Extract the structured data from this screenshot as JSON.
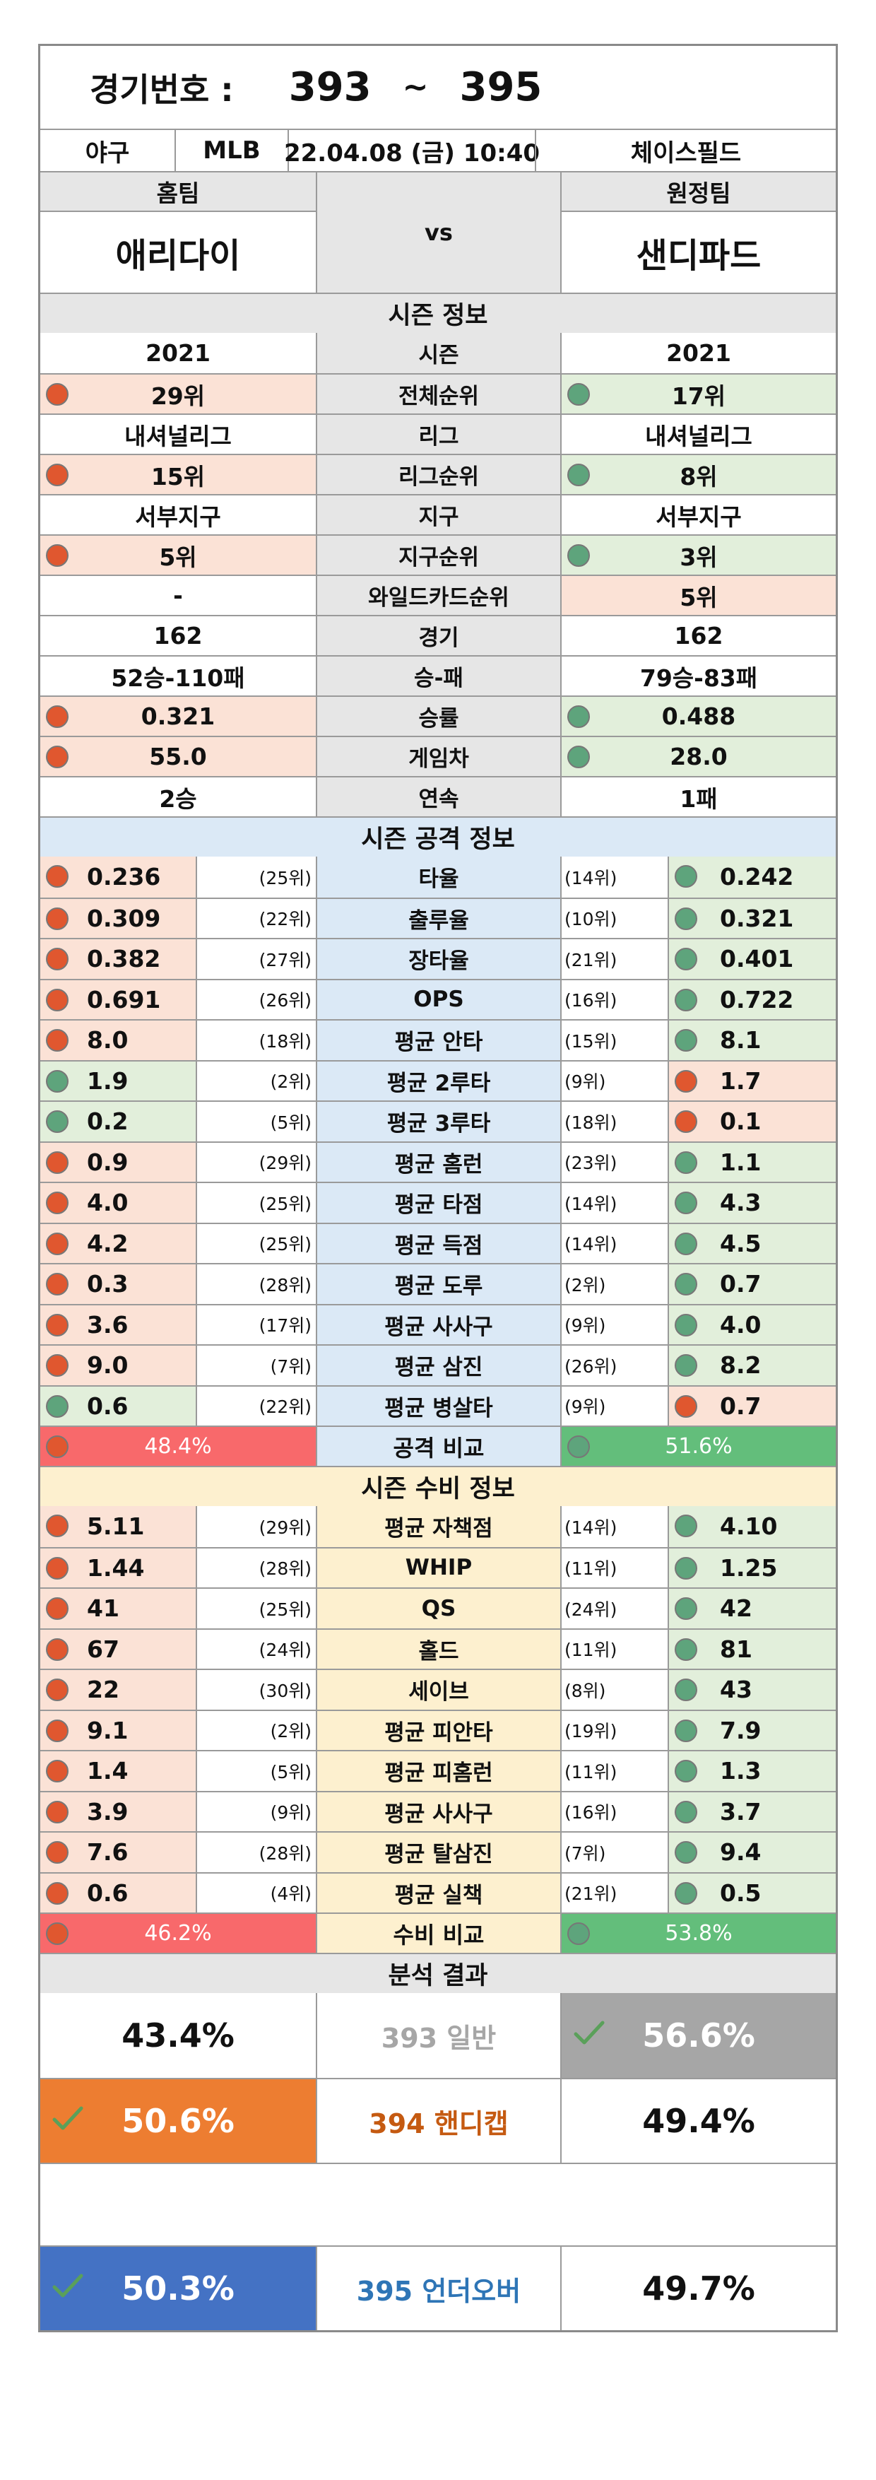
{
  "header": {
    "label": "경기번호 :",
    "from": "393",
    "tilde": "~",
    "to": "395"
  },
  "match": {
    "sport": "야구",
    "league": "MLB",
    "datetime": "22.04.08 (금) 10:40",
    "venue": "체이스필드"
  },
  "teams": {
    "home_label": "홈팀",
    "away_label": "원정팀",
    "home": "애리다이",
    "vs": "vs",
    "away": "샌디파드"
  },
  "season": {
    "title": "시즌 정보",
    "rows": [
      {
        "label": "시즌",
        "home": "2021",
        "away": "2021"
      },
      {
        "label": "전체순위",
        "home": "29위",
        "away": "17위",
        "home_dot": "red",
        "away_dot": "green"
      },
      {
        "label": "리그",
        "home": "내셔널리그",
        "away": "내셔널리그"
      },
      {
        "label": "리그순위",
        "home": "15위",
        "away": "8위",
        "home_dot": "red",
        "away_dot": "green"
      },
      {
        "label": "지구",
        "home": "서부지구",
        "away": "서부지구"
      },
      {
        "label": "지구순위",
        "home": "5위",
        "away": "3위",
        "home_dot": "red",
        "away_dot": "green"
      },
      {
        "label": "와일드카드순위",
        "home": "-",
        "away": "5위",
        "away_bg": "pink"
      },
      {
        "label": "경기",
        "home": "162",
        "away": "162"
      },
      {
        "label": "승-패",
        "home": "52승-110패",
        "away": "79승-83패"
      },
      {
        "label": "승률",
        "home": "0.321",
        "away": "0.488",
        "home_dot": "red",
        "away_dot": "green"
      },
      {
        "label": "게임차",
        "home": "55.0",
        "away": "28.0",
        "home_dot": "red",
        "away_dot": "green"
      },
      {
        "label": "연속",
        "home": "2승",
        "away": "1패"
      }
    ]
  },
  "offense": {
    "title": "시즌 공격 정보",
    "rows": [
      {
        "label": "타율",
        "home": "0.236",
        "home_rank": "(25위)",
        "away_rank": "(14위)",
        "away": "0.242",
        "home_dot": "red",
        "away_dot": "green"
      },
      {
        "label": "출루율",
        "home": "0.309",
        "home_rank": "(22위)",
        "away_rank": "(10위)",
        "away": "0.321",
        "home_dot": "red",
        "away_dot": "green"
      },
      {
        "label": "장타율",
        "home": "0.382",
        "home_rank": "(27위)",
        "away_rank": "(21위)",
        "away": "0.401",
        "home_dot": "red",
        "away_dot": "green"
      },
      {
        "label": "OPS",
        "home": "0.691",
        "home_rank": "(26위)",
        "away_rank": "(16위)",
        "away": "0.722",
        "home_dot": "red",
        "away_dot": "green"
      },
      {
        "label": "평균 안타",
        "home": "8.0",
        "home_rank": "(18위)",
        "away_rank": "(15위)",
        "away": "8.1",
        "home_dot": "red",
        "away_dot": "green"
      },
      {
        "label": "평균 2루타",
        "home": "1.9",
        "home_rank": "(2위)",
        "away_rank": "(9위)",
        "away": "1.7",
        "home_dot": "green",
        "away_dot": "red"
      },
      {
        "label": "평균 3루타",
        "home": "0.2",
        "home_rank": "(5위)",
        "away_rank": "(18위)",
        "away": "0.1",
        "home_dot": "green",
        "away_dot": "red"
      },
      {
        "label": "평균 홈런",
        "home": "0.9",
        "home_rank": "(29위)",
        "away_rank": "(23위)",
        "away": "1.1",
        "home_dot": "red",
        "away_dot": "green"
      },
      {
        "label": "평균 타점",
        "home": "4.0",
        "home_rank": "(25위)",
        "away_rank": "(14위)",
        "away": "4.3",
        "home_dot": "red",
        "away_dot": "green"
      },
      {
        "label": "평균 득점",
        "home": "4.2",
        "home_rank": "(25위)",
        "away_rank": "(14위)",
        "away": "4.5",
        "home_dot": "red",
        "away_dot": "green"
      },
      {
        "label": "평균 도루",
        "home": "0.3",
        "home_rank": "(28위)",
        "away_rank": "(2위)",
        "away": "0.7",
        "home_dot": "red",
        "away_dot": "green"
      },
      {
        "label": "평균 사사구",
        "home": "3.6",
        "home_rank": "(17위)",
        "away_rank": "(9위)",
        "away": "4.0",
        "home_dot": "red",
        "away_dot": "green"
      },
      {
        "label": "평균 삼진",
        "home": "9.0",
        "home_rank": "(7위)",
        "away_rank": "(26위)",
        "away": "8.2",
        "home_dot": "red",
        "away_dot": "green"
      },
      {
        "label": "평균 병살타",
        "home": "0.6",
        "home_rank": "(22위)",
        "away_rank": "(9위)",
        "away": "0.7",
        "home_dot": "green",
        "away_dot": "red"
      }
    ],
    "compare": {
      "label": "공격 비교",
      "home": "48.4%",
      "away": "51.6%"
    }
  },
  "defense": {
    "title": "시즌 수비 정보",
    "rows": [
      {
        "label": "평균 자책점",
        "home": "5.11",
        "home_rank": "(29위)",
        "away_rank": "(14위)",
        "away": "4.10",
        "home_dot": "red",
        "away_dot": "green"
      },
      {
        "label": "WHIP",
        "home": "1.44",
        "home_rank": "(28위)",
        "away_rank": "(11위)",
        "away": "1.25",
        "home_dot": "red",
        "away_dot": "green"
      },
      {
        "label": "QS",
        "home": "41",
        "home_rank": "(25위)",
        "away_rank": "(24위)",
        "away": "42",
        "home_dot": "red",
        "away_dot": "green"
      },
      {
        "label": "홀드",
        "home": "67",
        "home_rank": "(24위)",
        "away_rank": "(11위)",
        "away": "81",
        "home_dot": "red",
        "away_dot": "green"
      },
      {
        "label": "세이브",
        "home": "22",
        "home_rank": "(30위)",
        "away_rank": "(8위)",
        "away": "43",
        "home_dot": "red",
        "away_dot": "green"
      },
      {
        "label": "평균 피안타",
        "home": "9.1",
        "home_rank": "(2위)",
        "away_rank": "(19위)",
        "away": "7.9",
        "home_dot": "red",
        "away_dot": "green"
      },
      {
        "label": "평균 피홈런",
        "home": "1.4",
        "home_rank": "(5위)",
        "away_rank": "(11위)",
        "away": "1.3",
        "home_dot": "red",
        "away_dot": "green"
      },
      {
        "label": "평균 사사구",
        "home": "3.9",
        "home_rank": "(9위)",
        "away_rank": "(16위)",
        "away": "3.7",
        "home_dot": "red",
        "away_dot": "green"
      },
      {
        "label": "평균 탈삼진",
        "home": "7.6",
        "home_rank": "(28위)",
        "away_rank": "(7위)",
        "away": "9.4",
        "home_dot": "red",
        "away_dot": "green"
      },
      {
        "label": "평균 실책",
        "home": "0.6",
        "home_rank": "(4위)",
        "away_rank": "(21위)",
        "away": "0.5",
        "home_dot": "red",
        "away_dot": "green"
      }
    ],
    "compare": {
      "label": "수비 비교",
      "home": "46.2%",
      "away": "53.8%"
    }
  },
  "analysis": {
    "title": "분석 결과",
    "rows": [
      {
        "home": "43.4%",
        "label": "393 일반",
        "away": "56.6%",
        "pick": "away",
        "pick_color": "#a6a6a6",
        "label_color": "#a6a6a6"
      },
      {
        "home": "50.6%",
        "label": "394 핸디캡",
        "away": "49.4%",
        "pick": "home",
        "pick_color": "#ed7d31",
        "label_color": "#c55a11"
      },
      {
        "home": "50.3%",
        "label": "395 언더오버",
        "away": "49.7%",
        "pick": "home",
        "pick_color": "#4472c4",
        "label_color": "#2e75b6"
      }
    ]
  }
}
